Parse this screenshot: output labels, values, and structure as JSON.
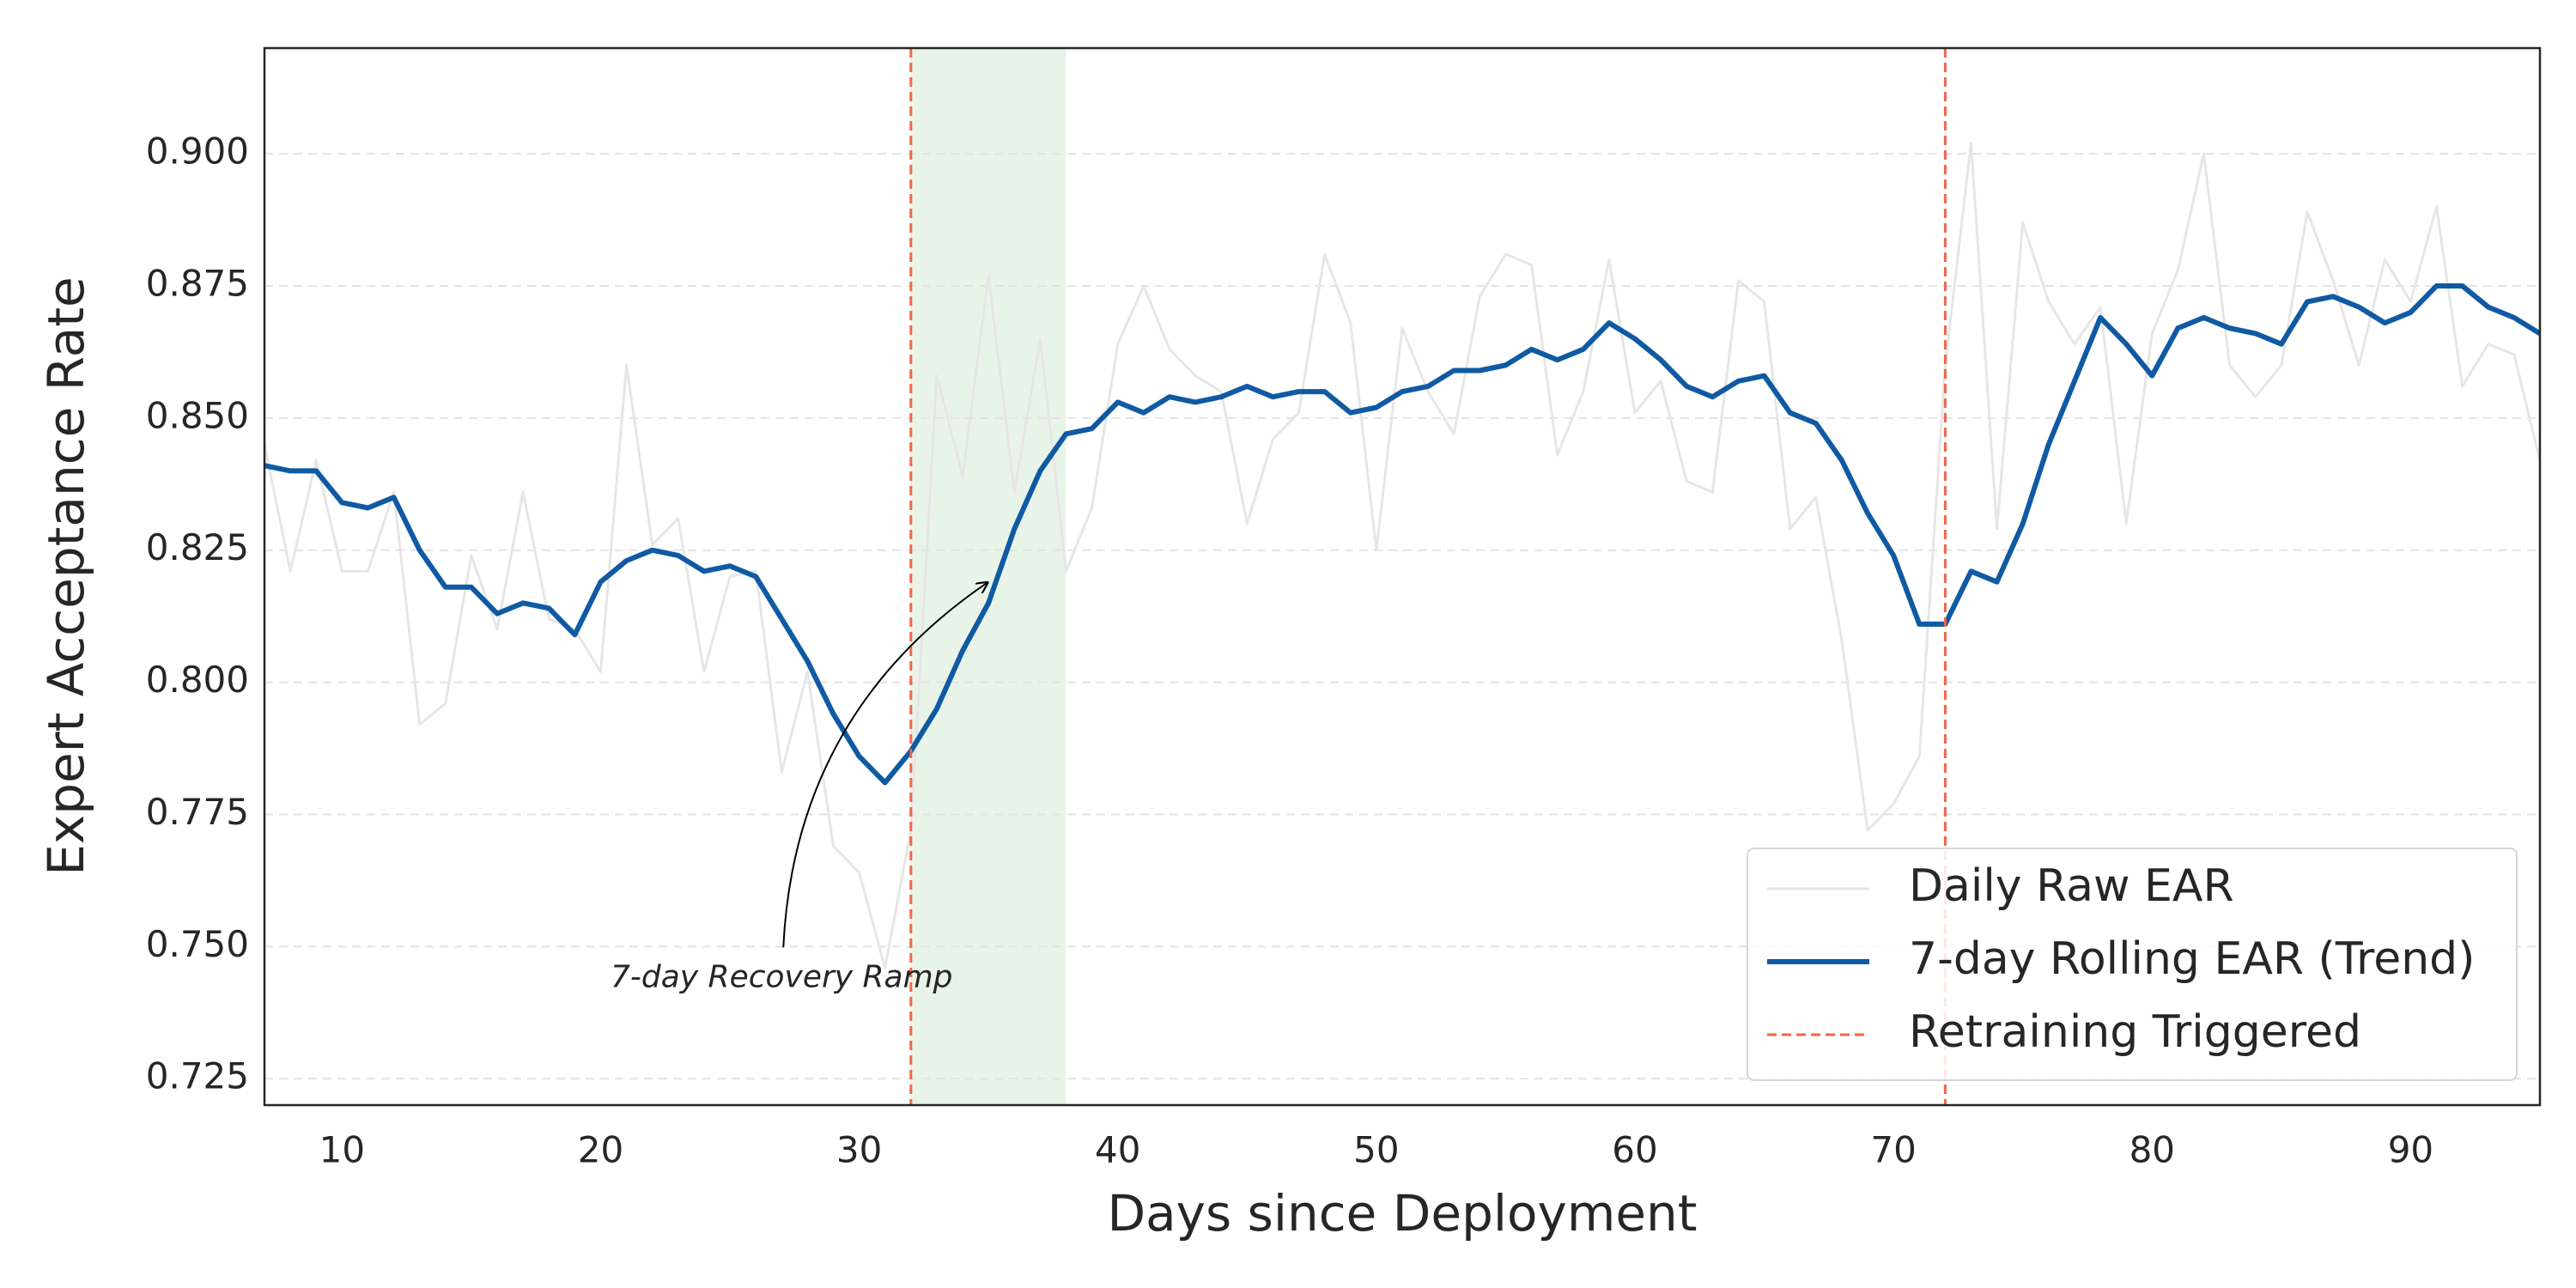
{
  "chart_data": {
    "type": "line",
    "x_label": "Days since Deployment",
    "y_label": "Expert Acceptance Rate",
    "x": [
      7,
      8,
      9,
      10,
      11,
      12,
      13,
      14,
      15,
      16,
      17,
      18,
      19,
      20,
      21,
      22,
      23,
      24,
      25,
      26,
      27,
      28,
      29,
      30,
      31,
      32,
      33,
      34,
      35,
      36,
      37,
      38,
      39,
      40,
      41,
      42,
      43,
      44,
      45,
      46,
      47,
      48,
      49,
      50,
      51,
      52,
      53,
      54,
      55,
      56,
      57,
      58,
      59,
      60,
      61,
      62,
      63,
      64,
      65,
      66,
      67,
      68,
      69,
      70,
      71,
      72,
      73,
      74,
      75,
      76,
      77,
      78,
      79,
      80,
      81,
      82,
      83,
      84,
      85,
      86,
      87,
      88,
      89,
      90,
      91,
      92,
      93,
      94,
      95
    ],
    "series": [
      {
        "name": "Daily Raw EAR",
        "color": "#e6e6e6",
        "width": 1.5,
        "values": [
          0.845,
          0.821,
          0.842,
          0.821,
          0.821,
          0.836,
          0.792,
          0.796,
          0.824,
          0.81,
          0.836,
          0.812,
          0.81,
          0.802,
          0.86,
          0.826,
          0.831,
          0.802,
          0.82,
          0.821,
          0.783,
          0.802,
          0.769,
          0.764,
          0.746,
          0.772,
          0.858,
          0.839,
          0.877,
          0.836,
          0.865,
          0.821,
          0.833,
          0.864,
          0.875,
          0.863,
          0.858,
          0.855,
          0.83,
          0.846,
          0.851,
          0.881,
          0.868,
          0.825,
          0.867,
          0.855,
          0.847,
          0.873,
          0.881,
          0.879,
          0.843,
          0.855,
          0.88,
          0.851,
          0.857,
          0.838,
          0.836,
          0.876,
          0.872,
          0.829,
          0.835,
          0.808,
          0.772,
          0.777,
          0.786,
          0.86,
          0.902,
          0.829,
          0.887,
          0.872,
          0.864,
          0.871,
          0.83,
          0.866,
          0.878,
          0.9,
          0.86,
          0.854,
          0.86,
          0.889,
          0.876,
          0.86,
          0.88,
          0.872,
          0.89,
          0.856,
          0.864,
          0.862,
          0.842
        ]
      },
      {
        "name": "7-day Rolling EAR (Trend)",
        "color": "#0f5aa3",
        "width": 3,
        "values": [
          0.841,
          0.84,
          0.84,
          0.834,
          0.833,
          0.835,
          0.825,
          0.818,
          0.818,
          0.813,
          0.815,
          0.814,
          0.809,
          0.819,
          0.823,
          0.825,
          0.824,
          0.821,
          0.822,
          0.82,
          0.812,
          0.804,
          0.794,
          0.786,
          0.781,
          0.787,
          0.795,
          0.806,
          0.815,
          0.829,
          0.84,
          0.847,
          0.848,
          0.853,
          0.851,
          0.854,
          0.853,
          0.854,
          0.856,
          0.854,
          0.855,
          0.855,
          0.851,
          0.852,
          0.855,
          0.856,
          0.859,
          0.859,
          0.86,
          0.863,
          0.861,
          0.863,
          0.868,
          0.865,
          0.861,
          0.856,
          0.854,
          0.857,
          0.858,
          0.851,
          0.849,
          0.842,
          0.832,
          0.824,
          0.811,
          0.811,
          0.821,
          0.819,
          0.83,
          0.845,
          0.857,
          0.869,
          0.864,
          0.858,
          0.867,
          0.869,
          0.867,
          0.866,
          0.864,
          0.872,
          0.873,
          0.871,
          0.868,
          0.87,
          0.875,
          0.875,
          0.871,
          0.869,
          0.866
        ]
      }
    ],
    "retraining": {
      "name": "Retraining Triggered",
      "color": "#f26546",
      "x": [
        32,
        72
      ]
    },
    "span": {
      "x": [
        32,
        38
      ],
      "color": "#e9f4e9"
    },
    "annotation": {
      "text": "7-day Recovery Ramp",
      "xy": [
        35,
        0.819
      ],
      "xytext": [
        27,
        0.744
      ]
    },
    "xlim": [
      7,
      95
    ],
    "ylim": [
      0.72,
      0.92
    ],
    "xticks": [
      10,
      20,
      30,
      40,
      50,
      60,
      70,
      80,
      90
    ],
    "yticks": [
      {
        "value": 0.725,
        "label": "0.725"
      },
      {
        "value": 0.75,
        "label": "0.750"
      },
      {
        "value": 0.775,
        "label": "0.775"
      },
      {
        "value": 0.8,
        "label": "0.800"
      },
      {
        "value": 0.825,
        "label": "0.825"
      },
      {
        "value": 0.85,
        "label": "0.850"
      },
      {
        "value": 0.875,
        "label": "0.875"
      },
      {
        "value": 0.9,
        "label": "0.900"
      }
    ],
    "grid": true,
    "legend": "lower right"
  }
}
